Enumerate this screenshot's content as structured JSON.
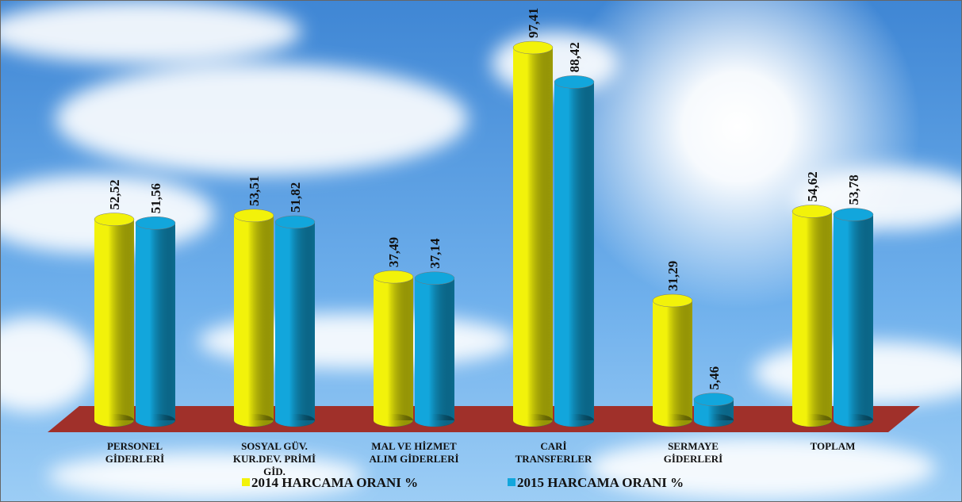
{
  "chart_data": {
    "type": "bar",
    "categories": [
      "PERSONEL GİDERLERİ",
      "SOSYAL GÜV. KUR.DEV. PRİMİ GİD.",
      "MAL VE HİZMET ALIM GİDERLERİ",
      "CARİ TRANSFERLER",
      "SERMAYE GİDERLERİ",
      "TOPLAM"
    ],
    "series": [
      {
        "name": "2014 HARCAMA ORANI %",
        "color": "#f2f20a",
        "values": [
          52.52,
          53.51,
          37.49,
          97.41,
          31.29,
          54.62
        ],
        "value_labels": [
          "52,52",
          "53,51",
          "37,49",
          "97,41",
          "31,29",
          "54,62"
        ]
      },
      {
        "name": "2015 HARCAMA ORANI %",
        "color": "#12a6dc",
        "values": [
          51.56,
          51.82,
          37.14,
          88.42,
          5.46,
          53.78
        ],
        "value_labels": [
          "51,56",
          "51,82",
          "37,14",
          "88,42",
          "5,46",
          "53,78"
        ]
      }
    ]
  }
}
